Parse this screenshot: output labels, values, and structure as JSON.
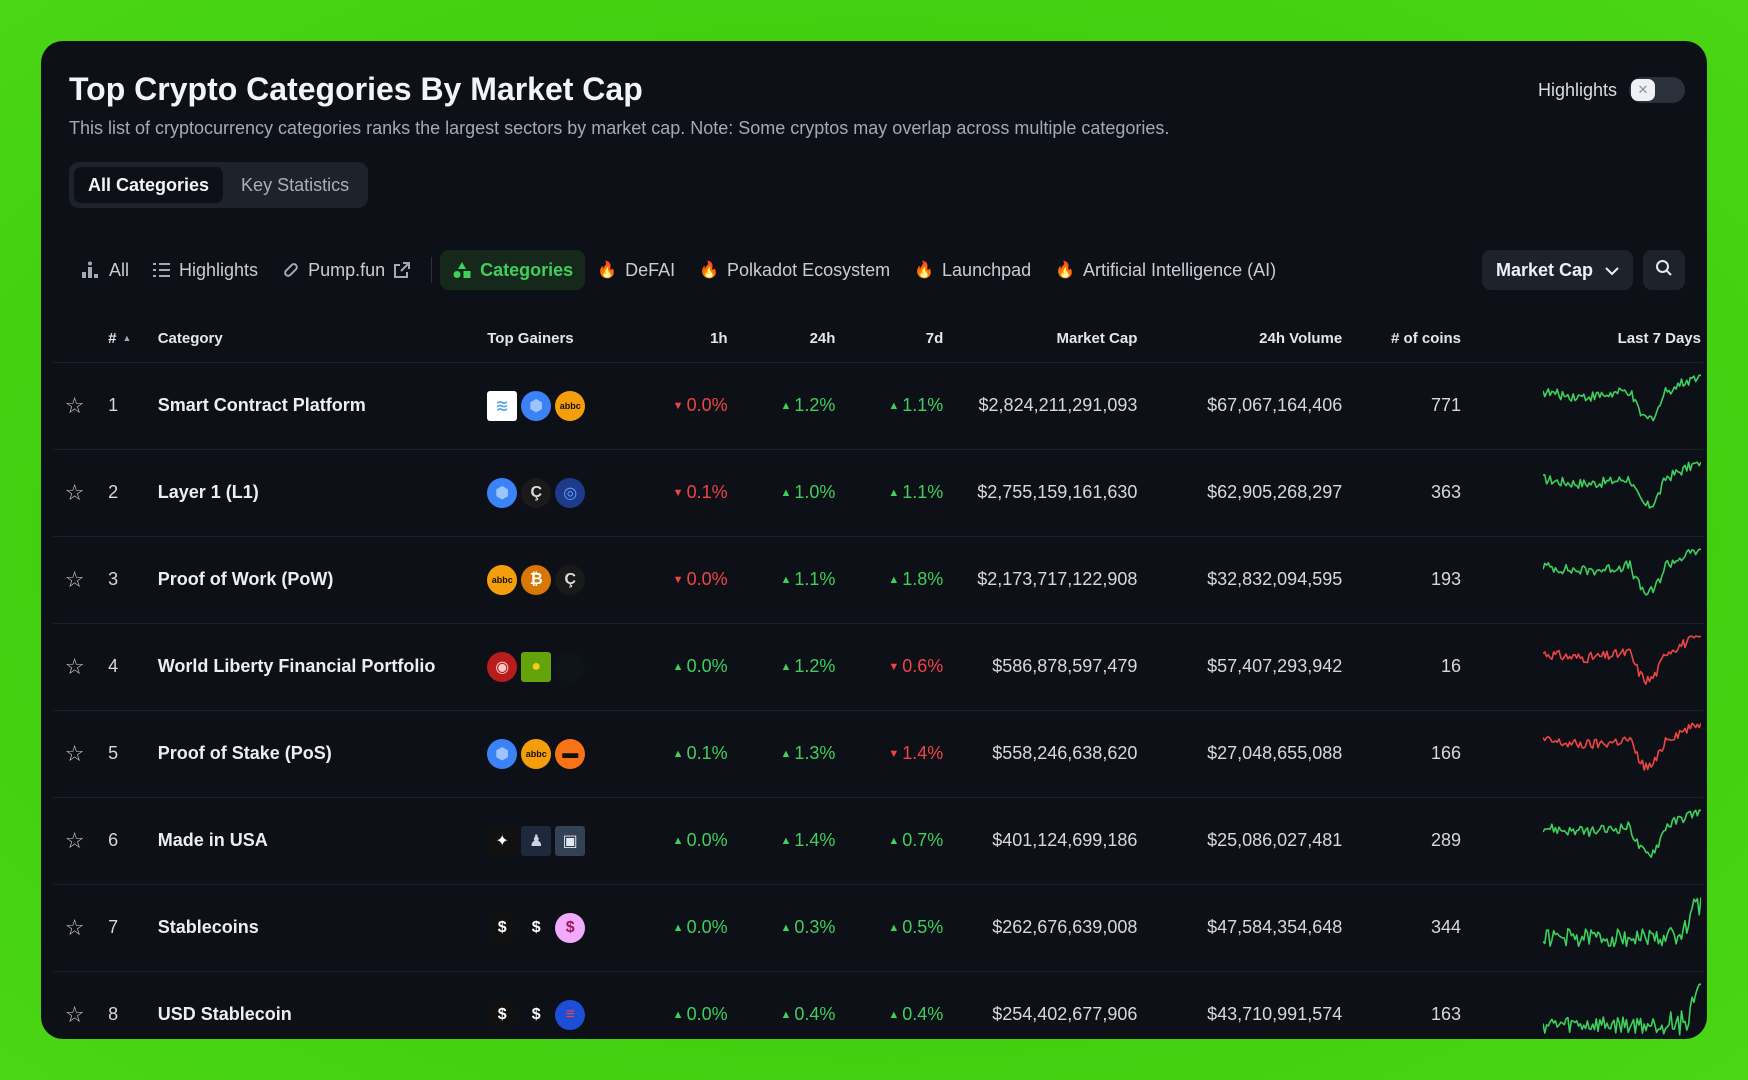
{
  "header": {
    "title": "Top Crypto Categories By Market Cap",
    "subtitle": "This list of cryptocurrency categories ranks the largest sectors by market cap. Note: Some cryptos may overlap across multiple categories.",
    "highlights_label": "Highlights",
    "highlights_on": false
  },
  "view_tabs": [
    {
      "label": "All Categories",
      "active": true
    },
    {
      "label": "Key Statistics",
      "active": false
    }
  ],
  "filters": [
    {
      "label": "All",
      "icon": "bar-chart-icon",
      "active": false
    },
    {
      "label": "Highlights",
      "icon": "list-icon",
      "active": false
    },
    {
      "label": "Pump.fun",
      "icon": "pill-icon",
      "external": true,
      "active": false
    },
    {
      "label": "Categories",
      "icon": "shapes-icon",
      "active": true
    },
    {
      "label": "DeFAI",
      "icon": "fire-icon",
      "active": false
    },
    {
      "label": "Polkadot Ecosystem",
      "icon": "fire-icon",
      "active": false
    },
    {
      "label": "Launchpad",
      "icon": "fire-icon",
      "active": false
    },
    {
      "label": "Artificial Intelligence (AI)",
      "icon": "fire-icon",
      "active": false
    }
  ],
  "sort_select": {
    "value": "Market Cap"
  },
  "columns": {
    "rank": "#",
    "category": "Category",
    "top_gainers": "Top Gainers",
    "h1": "1h",
    "h24": "24h",
    "d7": "7d",
    "market_cap": "Market Cap",
    "volume": "24h Volume",
    "coins": "# of coins",
    "spark": "Last 7 Days"
  },
  "colors": {
    "up": "#3ecf5c",
    "down": "#ef4444",
    "accent": "#3ecf5c"
  },
  "rows": [
    {
      "rank": "1",
      "name": "Smart Contract Platform",
      "h1": "0.0%",
      "h1_dir": "down",
      "h24": "1.2%",
      "h24_dir": "up",
      "d7": "1.1%",
      "d7_dir": "up",
      "market_cap": "$2,824,211,291,093",
      "volume": "$67,067,164,406",
      "coins": "771",
      "spark_dir": "up",
      "spark_shape": "dip",
      "gainers": [
        {
          "icon": "stack-logo-icon",
          "bg": "#ffffff",
          "fg": "#5aa9e6",
          "sq": true
        },
        {
          "icon": "hexagon-logo-icon",
          "bg": "#3b82f6",
          "fg": "#9cc4ff"
        },
        {
          "icon": "abbc-logo-icon",
          "bg": "#f59e0b",
          "fg": "#111"
        }
      ]
    },
    {
      "rank": "2",
      "name": "Layer 1 (L1)",
      "h1": "0.1%",
      "h1_dir": "down",
      "h24": "1.0%",
      "h24_dir": "up",
      "d7": "1.1%",
      "d7_dir": "up",
      "market_cap": "$2,755,159,161,630",
      "volume": "$62,905,268,297",
      "coins": "363",
      "spark_dir": "up",
      "spark_shape": "dip",
      "gainers": [
        {
          "icon": "hexagon-logo-icon",
          "bg": "#3b82f6",
          "fg": "#9cc4ff"
        },
        {
          "icon": "c-coin-logo-icon",
          "bg": "#1a1a1a",
          "fg": "#dddddd"
        },
        {
          "icon": "ring-logo-icon",
          "bg": "#1e3a8a",
          "fg": "#60a5fa"
        }
      ]
    },
    {
      "rank": "3",
      "name": "Proof of Work (PoW)",
      "h1": "0.0%",
      "h1_dir": "down",
      "h24": "1.1%",
      "h24_dir": "up",
      "d7": "1.8%",
      "d7_dir": "up",
      "market_cap": "$2,173,717,122,908",
      "volume": "$32,832,094,595",
      "coins": "193",
      "spark_dir": "up",
      "spark_shape": "dip",
      "gainers": [
        {
          "icon": "abbc-logo-icon",
          "bg": "#f59e0b",
          "fg": "#111"
        },
        {
          "icon": "bitcoin-gear-logo-icon",
          "bg": "#d97706",
          "fg": "#fff"
        },
        {
          "icon": "c-coin-logo-icon",
          "bg": "#1a1a1a",
          "fg": "#dddddd"
        }
      ]
    },
    {
      "rank": "4",
      "name": "World Liberty Financial Portfolio",
      "h1": "0.0%",
      "h1_dir": "up",
      "h24": "1.2%",
      "h24_dir": "up",
      "d7": "0.6%",
      "d7_dir": "down",
      "market_cap": "$586,878,597,479",
      "volume": "$57,407,293,942",
      "coins": "16",
      "spark_dir": "down",
      "spark_shape": "dip",
      "gainers": [
        {
          "icon": "red-logo-icon",
          "bg": "#b91c1c",
          "fg": "#fecaca"
        },
        {
          "icon": "frog-logo-icon",
          "bg": "#65a30d",
          "fg": "#facc15",
          "sq": true
        },
        {
          "icon": "dark-logo-icon",
          "bg": "#0f1419",
          "fg": "#1f2937"
        }
      ]
    },
    {
      "rank": "5",
      "name": "Proof of Stake (PoS)",
      "h1": "0.1%",
      "h1_dir": "up",
      "h24": "1.3%",
      "h24_dir": "up",
      "d7": "1.4%",
      "d7_dir": "down",
      "market_cap": "$558,246,638,620",
      "volume": "$27,048,655,088",
      "coins": "166",
      "spark_dir": "down",
      "spark_shape": "dip",
      "gainers": [
        {
          "icon": "hexagon-logo-icon",
          "bg": "#3b82f6",
          "fg": "#9cc4ff"
        },
        {
          "icon": "abbc-logo-icon",
          "bg": "#f59e0b",
          "fg": "#111"
        },
        {
          "icon": "orange-logo-icon",
          "bg": "#f97316",
          "fg": "#111"
        }
      ]
    },
    {
      "rank": "6",
      "name": "Made in USA",
      "h1": "0.0%",
      "h1_dir": "up",
      "h24": "1.4%",
      "h24_dir": "up",
      "d7": "0.7%",
      "d7_dir": "up",
      "market_cap": "$401,124,699,186",
      "volume": "$25,086,027,481",
      "coins": "289",
      "spark_dir": "up",
      "spark_shape": "dip",
      "gainers": [
        {
          "icon": "sparkle-logo-icon",
          "bg": "#111",
          "fg": "#fff",
          "sq": true
        },
        {
          "icon": "figure-logo-icon",
          "bg": "#1e293b",
          "fg": "#cbd5e1",
          "sq": true
        },
        {
          "icon": "robot-logo-icon",
          "bg": "#334155",
          "fg": "#e2e8f0",
          "sq": true
        }
      ]
    },
    {
      "rank": "7",
      "name": "Stablecoins",
      "h1": "0.0%",
      "h1_dir": "up",
      "h24": "0.3%",
      "h24_dir": "up",
      "d7": "0.5%",
      "d7_dir": "up",
      "market_cap": "$262,676,639,008",
      "volume": "$47,584,354,648",
      "coins": "344",
      "spark_dir": "up",
      "spark_shape": "noise",
      "gainers": [
        {
          "icon": "dollar-logo-icon",
          "bg": "#111",
          "fg": "#fff"
        },
        {
          "icon": "dollar-chain-logo-icon",
          "bg": "#0d1117",
          "fg": "#fff"
        },
        {
          "icon": "pink-dollar-logo-icon",
          "bg": "#f0abfc",
          "fg": "#9d174d"
        }
      ]
    },
    {
      "rank": "8",
      "name": "USD Stablecoin",
      "h1": "0.0%",
      "h1_dir": "up",
      "h24": "0.4%",
      "h24_dir": "up",
      "d7": "0.4%",
      "d7_dir": "up",
      "market_cap": "$254,402,677,906",
      "volume": "$43,710,991,574",
      "coins": "163",
      "spark_dir": "up",
      "spark_shape": "noise",
      "gainers": [
        {
          "icon": "dollar-logo-icon",
          "bg": "#111",
          "fg": "#fff"
        },
        {
          "icon": "dollar-chain-logo-icon",
          "bg": "#0d1117",
          "fg": "#fff"
        },
        {
          "icon": "flag-logo-icon",
          "bg": "#1d4ed8",
          "fg": "#ef4444"
        }
      ]
    }
  ]
}
